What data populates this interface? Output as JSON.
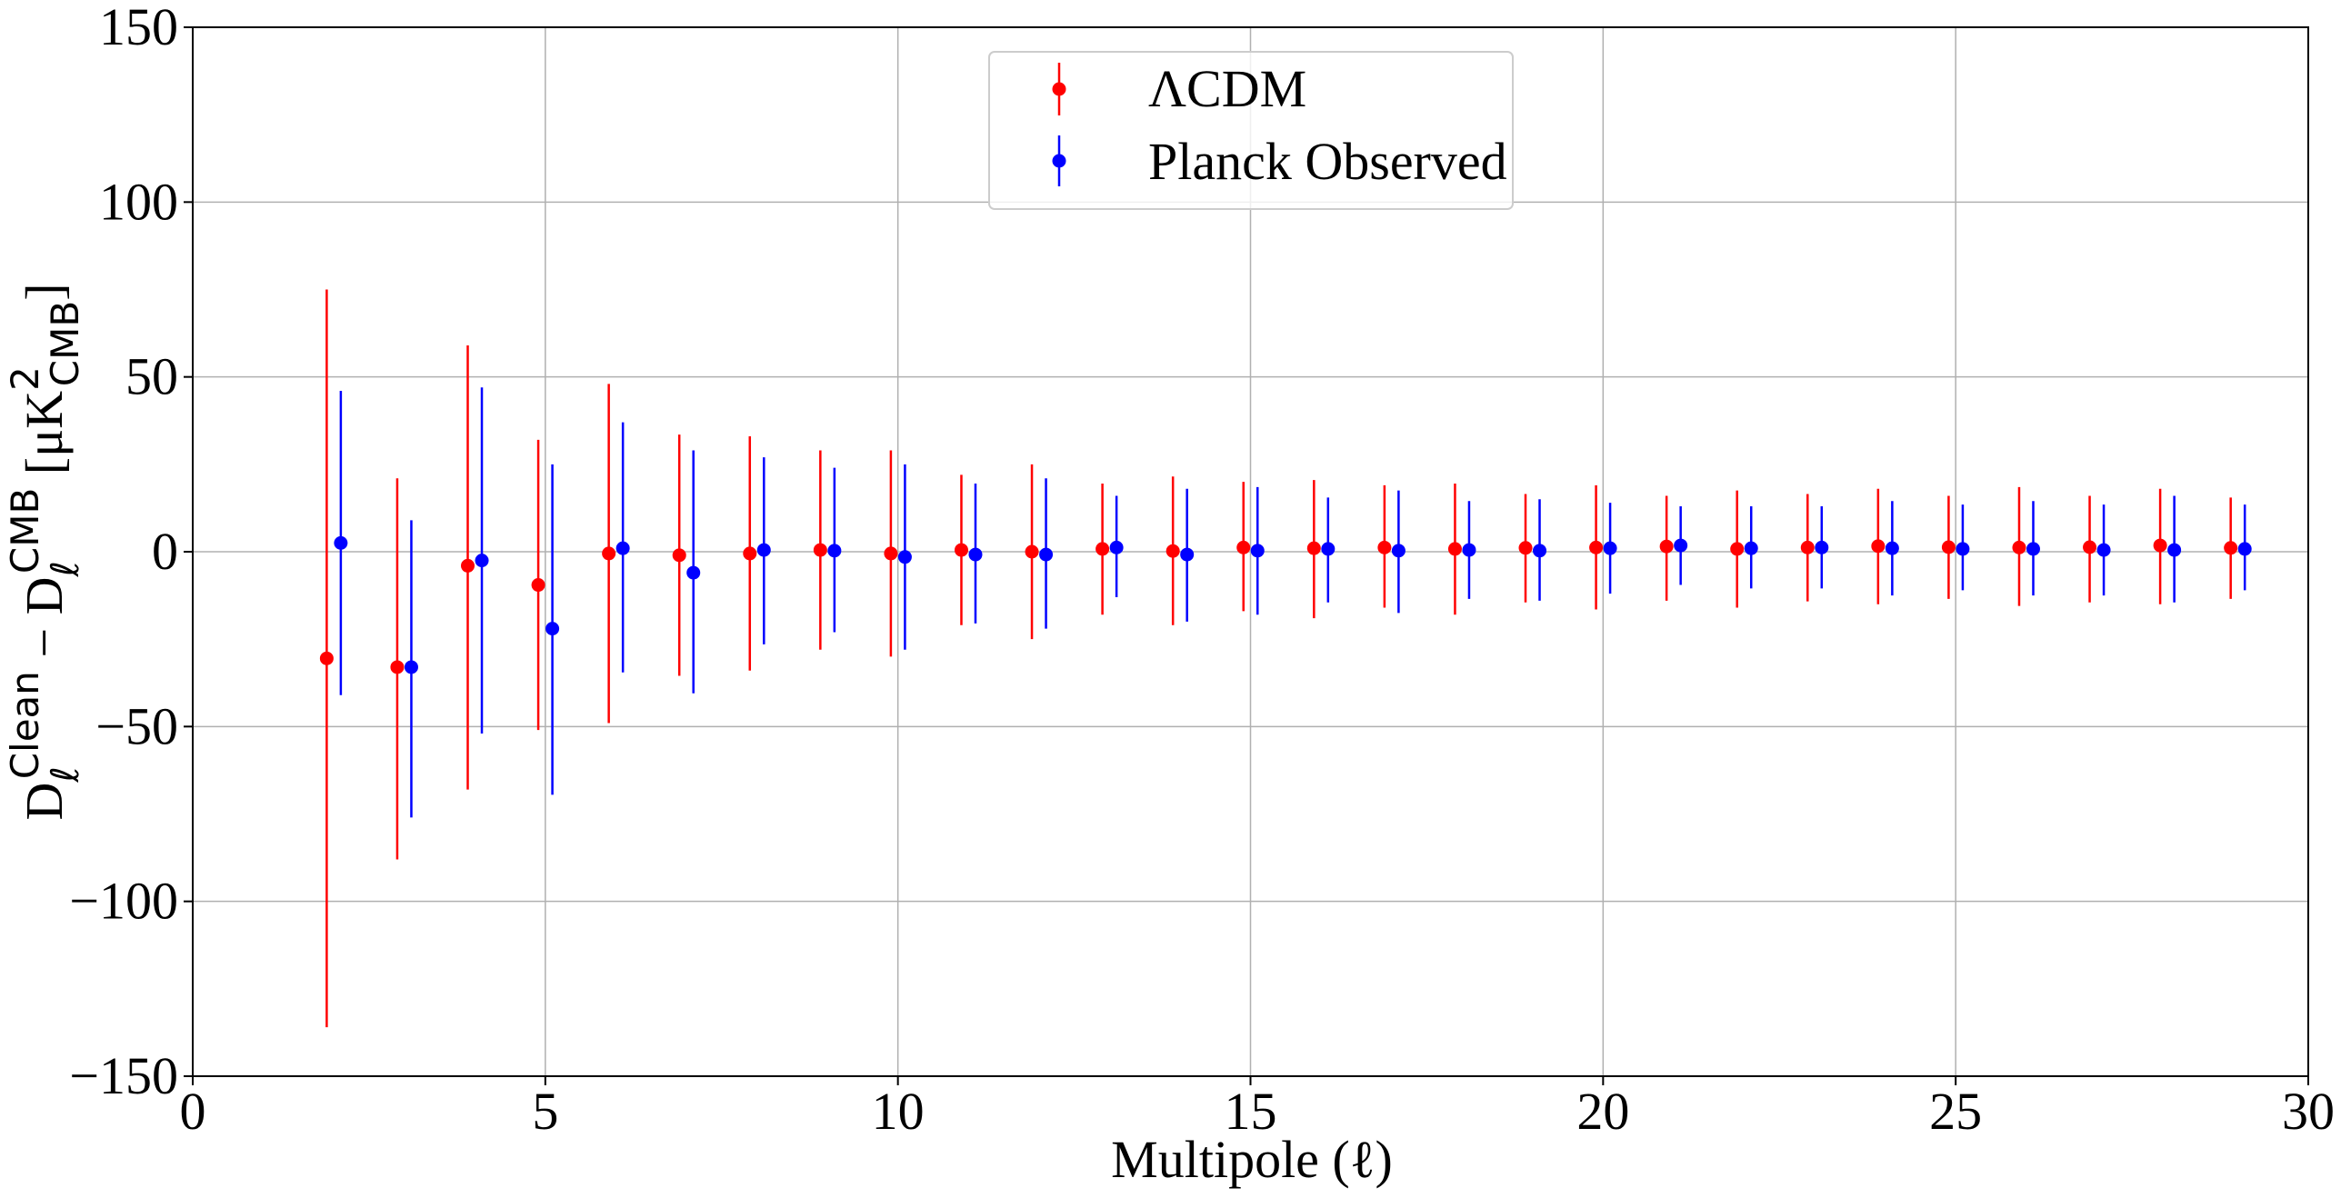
{
  "chart_data": {
    "type": "scatter",
    "xlabel": "Multipole (ℓ)",
    "ylabel": {
      "D": "D",
      "sub": "ℓ",
      "sup_clean": "Clean",
      "minus": " − ",
      "sup_cmb": "CMB",
      "unit_open": " [μK",
      "unit_sup": "2",
      "unit_sub": "CMB",
      "unit_close": "]"
    },
    "xlim": [
      0,
      30
    ],
    "ylim": [
      -150,
      150
    ],
    "xticks": [
      0,
      5,
      10,
      15,
      20,
      25,
      30
    ],
    "yticks": [
      -150,
      -100,
      -50,
      0,
      50,
      100,
      150
    ],
    "xtick_labels": [
      "0",
      "5",
      "10",
      "15",
      "20",
      "25",
      "30"
    ],
    "ytick_labels": [
      "−150",
      "−100",
      "−50",
      "0",
      "50",
      "100",
      "150"
    ],
    "grid": true,
    "legend_position": "top-center",
    "series": [
      {
        "name": "ΛCDM",
        "color": "#ff0000",
        "x": [
          1.9,
          2.9,
          3.9,
          4.9,
          5.9,
          6.9,
          7.9,
          8.9,
          9.9,
          10.9,
          11.9,
          12.9,
          13.9,
          14.9,
          15.9,
          16.9,
          17.9,
          18.9,
          19.9,
          20.9,
          21.9,
          22.9,
          23.9,
          24.9,
          25.9,
          26.9,
          27.9,
          28.9
        ],
        "y": [
          -30.5,
          -33,
          -4,
          -9.5,
          -0.5,
          -1,
          -0.5,
          0.5,
          -0.5,
          0.5,
          0,
          0.8,
          0.2,
          1.2,
          1,
          1.2,
          0.8,
          1.1,
          1.2,
          1.5,
          0.8,
          1.2,
          1.6,
          1.3,
          1.2,
          1.3,
          1.8,
          1.1
        ],
        "ylow": [
          -136,
          -88,
          -68,
          -51,
          -49,
          -35.5,
          -34,
          -28,
          -30,
          -21,
          -25,
          -18,
          -21,
          -17,
          -19,
          -16,
          -18,
          -14.5,
          -16.5,
          -14,
          -16,
          -14.2,
          -15,
          -13.5,
          -15.5,
          -14.5,
          -15,
          -13.5
        ],
        "yhigh": [
          75,
          21,
          59,
          32,
          48,
          33.5,
          33,
          29,
          29,
          22,
          25,
          19.5,
          21.5,
          20,
          20.5,
          19,
          19.5,
          16.5,
          19,
          16,
          17.5,
          16.5,
          18,
          16,
          18.5,
          16,
          18,
          15.5
        ]
      },
      {
        "name": "Planck Observed",
        "color": "#0000ff",
        "x": [
          2.1,
          3.1,
          4.1,
          5.1,
          6.1,
          7.1,
          8.1,
          9.1,
          10.1,
          11.1,
          12.1,
          13.1,
          14.1,
          15.1,
          16.1,
          17.1,
          18.1,
          19.1,
          20.1,
          21.1,
          22.1,
          23.1,
          24.1,
          25.1,
          26.1,
          27.1,
          28.1,
          29.1
        ],
        "y": [
          2.5,
          -33,
          -2.5,
          -22,
          1,
          -6,
          0.5,
          0.3,
          -1.5,
          -0.8,
          -0.8,
          1.2,
          -0.8,
          0.3,
          0.8,
          0.3,
          0.5,
          0.3,
          1,
          1.8,
          1,
          1.2,
          1,
          0.8,
          0.8,
          0.5,
          0.5,
          0.8
        ],
        "ylow": [
          -41,
          -76,
          -52,
          -69.5,
          -34.5,
          -40.5,
          -26.5,
          -23,
          -28,
          -20.5,
          -22,
          -13,
          -20,
          -18,
          -14.5,
          -17.5,
          -13.5,
          -14,
          -12,
          -9.5,
          -10.5,
          -10.5,
          -12.5,
          -11,
          -12.5,
          -12.5,
          -14.5,
          -11
        ],
        "yhigh": [
          46,
          9,
          47,
          25,
          37,
          29,
          27,
          24,
          25,
          19.5,
          21,
          16,
          18,
          18.5,
          15.5,
          17.5,
          14.5,
          15,
          14,
          13,
          13,
          13,
          14.5,
          13.5,
          14.5,
          13.5,
          16,
          13.5
        ]
      }
    ]
  }
}
